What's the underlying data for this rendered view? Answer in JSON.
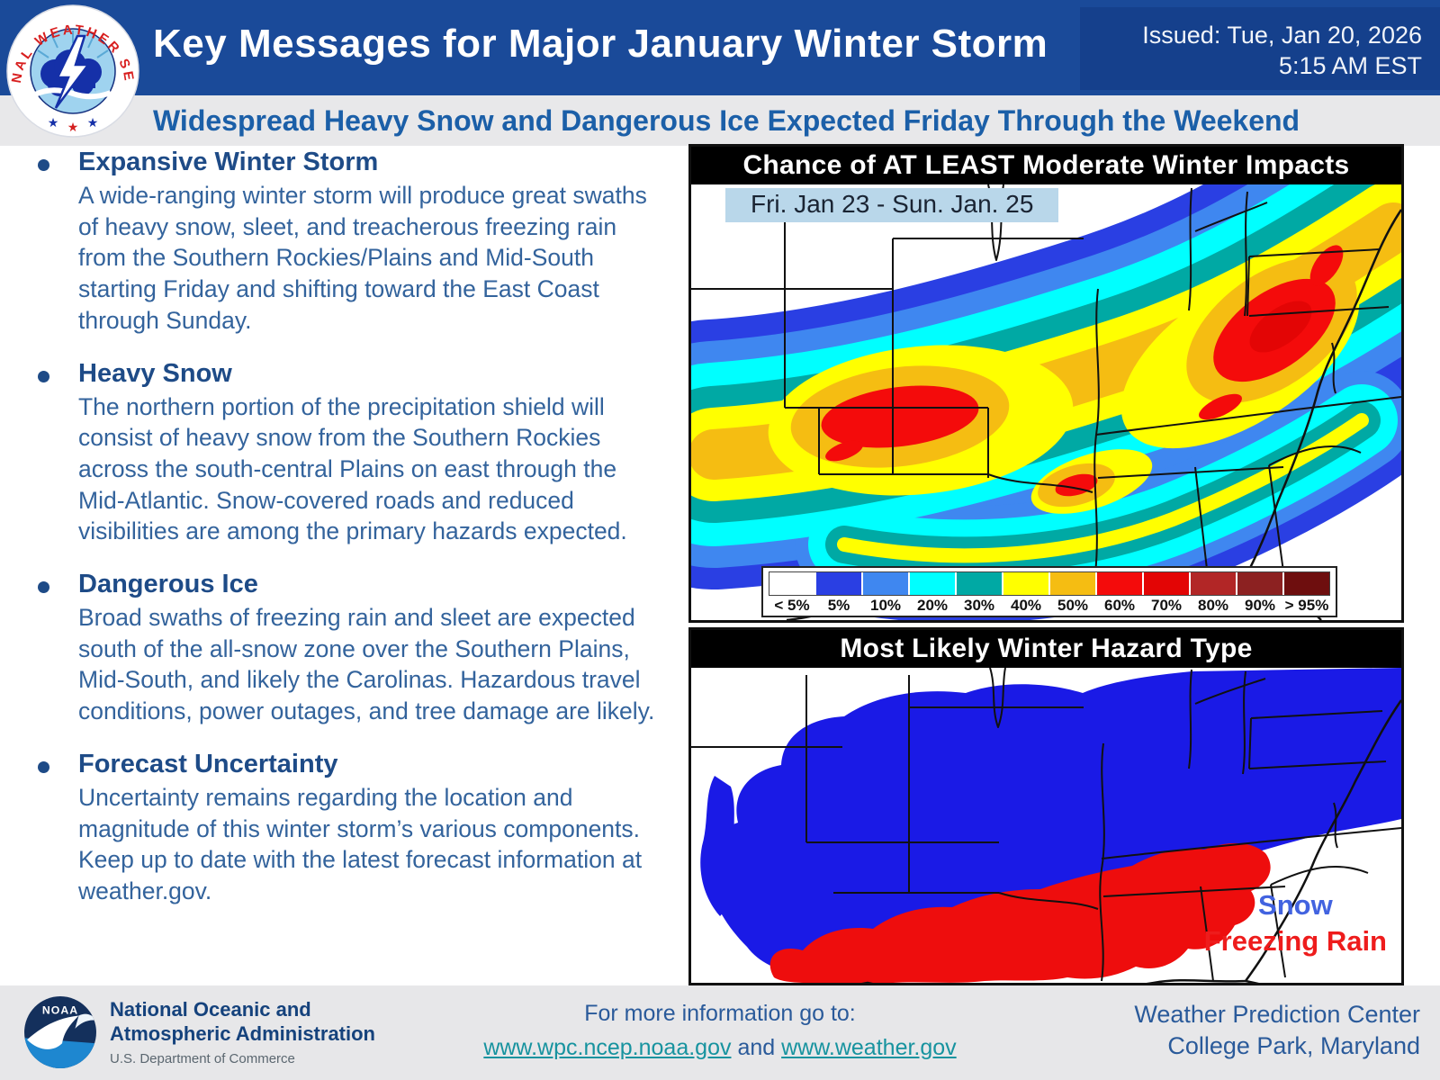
{
  "header": {
    "title": "Key Messages for Major January Winter Storm",
    "issued_line1": "Issued: Tue, Jan 20, 2026",
    "issued_line2": "5:15 AM EST",
    "logo_ring_text": "NATIONAL WEATHER SERVICE"
  },
  "subtitle": "Widespread Heavy Snow and Dangerous Ice Expected Friday Through the Weekend",
  "key_messages": [
    {
      "heading": "Expansive Winter Storm",
      "body": "A wide-ranging winter storm will produce great swaths of heavy snow, sleet, and treacherous freezing rain from the Southern Rockies/Plains and Mid-South starting Friday and shifting toward the East Coast through Sunday."
    },
    {
      "heading": "Heavy Snow",
      "body": "The northern portion of the precipitation shield will consist of heavy snow from the Southern Rockies across the south-central Plains on east through the Mid-Atlantic. Snow-covered roads and reduced visibilities are among the primary hazards expected."
    },
    {
      "heading": "Dangerous Ice",
      "body": "Broad swaths of freezing rain and sleet are expected south of the all-snow zone over the Southern Plains, Mid-South, and likely the Carolinas. Hazardous travel conditions, power outages, and tree damage are likely."
    },
    {
      "heading": "Forecast Uncertainty",
      "body": "Uncertainty remains regarding the location and magnitude of this winter storm’s various components. Keep up to date with the latest forecast information at weather.gov."
    }
  ],
  "impact_map": {
    "title": "Chance of AT LEAST Moderate Winter Impacts",
    "date_range": "Fri. Jan 23 - Sun. Jan. 25",
    "colorbar": {
      "labels": [
        "< 5%",
        "5%",
        "10%",
        "20%",
        "30%",
        "40%",
        "50%",
        "60%",
        "70%",
        "80%",
        "90%",
        "> 95%"
      ],
      "colors": [
        "#ffffff",
        "#2a3fe3",
        "#3f87f0",
        "#00ffff",
        "#00a9a4",
        "#ffff00",
        "#f5bd12",
        "#f40b0b",
        "#e30505",
        "#b22626",
        "#8c2121",
        "#6e0e0e"
      ]
    }
  },
  "hazard_map": {
    "title": "Most Likely Winter Hazard Type",
    "legend": [
      {
        "label": "Snow",
        "color": "#4263e0"
      },
      {
        "label": "Freezing Rain",
        "color": "#ee1c1c"
      }
    ],
    "area_colors": {
      "snow": "#1a1ae6",
      "freezing_rain": "#ee0d0d"
    }
  },
  "footer": {
    "noaa_logo_text": "NOAA",
    "noaa_line1": "National Oceanic and",
    "noaa_line2": "Atmospheric Administration",
    "noaa_line3": "U.S. Department of Commerce",
    "info_label": "For more information go to:",
    "link1": "www.wpc.ncep.noaa.gov",
    "link_sep": "and",
    "link2": "www.weather.gov",
    "org_line1": "Weather Prediction Center",
    "org_line2": "College Park, Maryland"
  },
  "colors": {
    "header_bg": "#1a4a99",
    "issued_box_bg": "#15408c",
    "subtitle_bg": "#e8e8ea",
    "heading_text": "#1e4b87",
    "body_text": "#33639c",
    "footer_bg": "#e7e7e9",
    "link_teal": "#17939f"
  }
}
